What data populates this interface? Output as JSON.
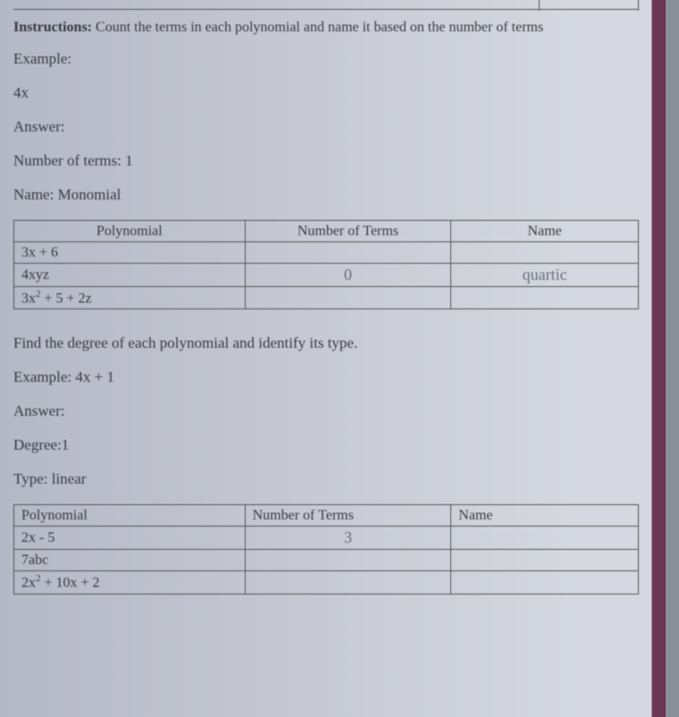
{
  "instructions_label": "Instructions:",
  "instructions_text": "Count the terms in each polynomial and name it based on the number of terms",
  "example_label": "Example:",
  "example_value": "4x",
  "answer_label": "Answer:",
  "num_terms_label": "Number of terms: 1",
  "name_label": "Name: Monomial",
  "table1": {
    "headers": [
      "Polynomial",
      "Number of Terms",
      "Name"
    ],
    "rows": [
      {
        "poly": "3x + 6",
        "terms": "",
        "name": ""
      },
      {
        "poly": "4xyz",
        "terms": "0",
        "name": "quartic"
      },
      {
        "poly": "3x² + 5 + 2z",
        "terms": "",
        "name": ""
      }
    ]
  },
  "section2": {
    "find": "Find the degree of each polynomial and identify its type.",
    "example_label": "Example: 4x + 1",
    "answer_label": "Answer:",
    "degree": "Degree:1",
    "type": "Type: linear"
  },
  "table2": {
    "headers": [
      "Polynomial",
      "Number of Terms",
      "Name"
    ],
    "rows": [
      {
        "poly": "2x - 5",
        "terms": "3",
        "name": ""
      },
      {
        "poly": "7abc",
        "terms": "",
        "name": ""
      },
      {
        "poly": "2x² + 10x + 2",
        "terms": "",
        "name": ""
      }
    ]
  }
}
